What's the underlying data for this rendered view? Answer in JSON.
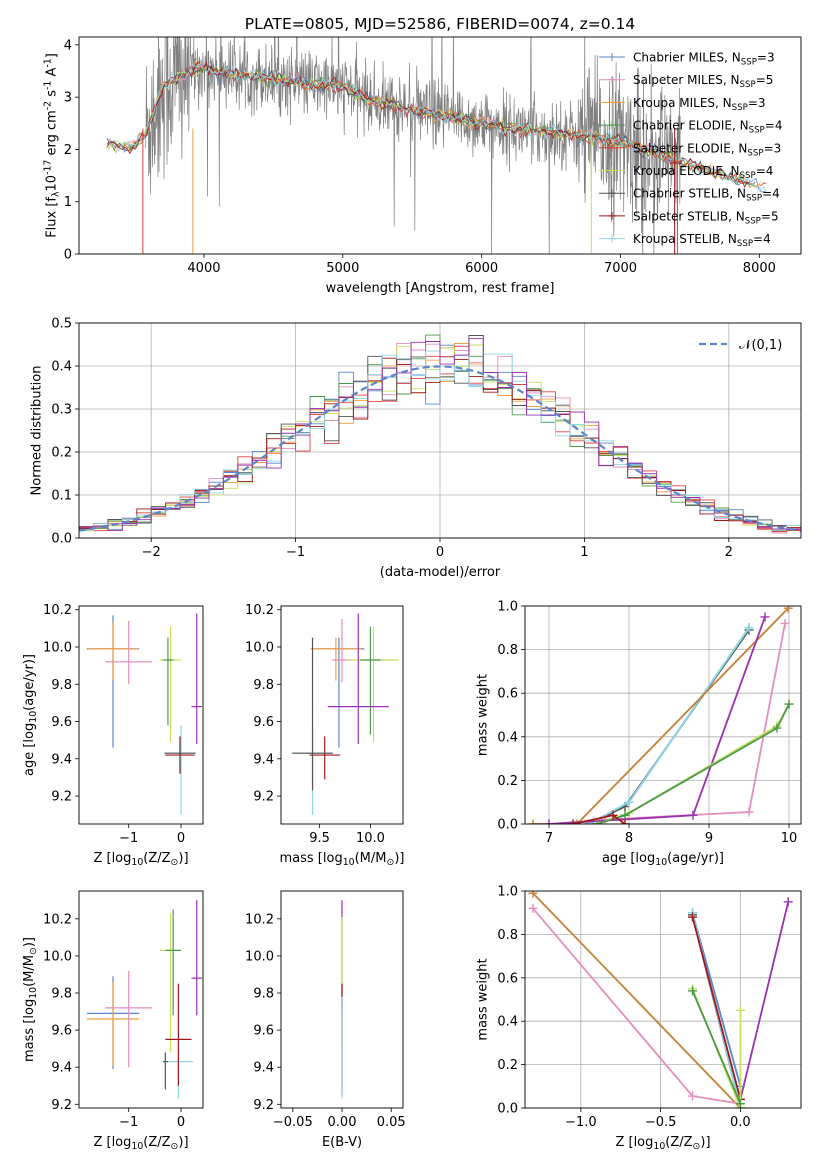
{
  "chart_data": [
    {
      "id": "spectrum",
      "type": "line",
      "title": "PLATE=0805, MJD=52586, FIBERID=0074, z=0.14",
      "xlabel": "wavelength [Angstrom, rest frame]",
      "ylabel": "Flux [f$_\\lambda$10$^{-17}$ erg cm$^{-2}$ s$^{-1}$ A$^{-1}$]",
      "xlim": [
        3100,
        8300
      ],
      "ylim": [
        0,
        4.15
      ],
      "xticks": [
        4000,
        5000,
        6000,
        7000,
        8000
      ],
      "yticks": [
        0,
        1,
        2,
        3,
        4
      ],
      "legend_position": "upper-right",
      "legend": [
        {
          "name": "Chabrier MILES, N$_{SSP}$=3",
          "color": "#5b86c9",
          "marker": "+"
        },
        {
          "name": "Salpeter MILES, N$_{SSP}$=5",
          "color": "#e38fbd",
          "marker": "+"
        },
        {
          "name": "Kroupa MILES, N$_{SSP}$=3",
          "color": "#f0a040",
          "marker": "+"
        },
        {
          "name": "Chabrier ELODIE, N$_{SSP}$=4",
          "color": "#4c9a4c",
          "marker": "+"
        },
        {
          "name": "Salpeter ELODIE, N$_{SSP}$=3",
          "color": "#e04040",
          "marker": "+"
        },
        {
          "name": "Kroupa ELODIE, N$_{SSP}$=4",
          "color": "#c8e060",
          "marker": "+"
        },
        {
          "name": "Chabrier STELIB, N$_{SSP}$=4",
          "color": "#555555",
          "marker": "+"
        },
        {
          "name": "Salpeter STELIB, N$_{SSP}$=5",
          "color": "#a01818",
          "marker": "+"
        },
        {
          "name": "Kroupa STELIB, N$_{SSP}$=4",
          "color": "#8fd8e8",
          "marker": "+"
        }
      ],
      "data_color": "#808080",
      "data_x_range": [
        3580,
        7430
      ],
      "model_curve": {
        "x": [
          3300,
          3500,
          3580,
          3700,
          3900,
          4000,
          4200,
          4500,
          4800,
          5000,
          5200,
          5500,
          5800,
          6200,
          6600,
          7000,
          7400,
          7800,
          8050
        ],
        "y": [
          2.1,
          2.05,
          2.3,
          3.2,
          3.5,
          3.55,
          3.45,
          3.35,
          3.25,
          3.2,
          2.95,
          2.75,
          2.6,
          2.4,
          2.3,
          2.15,
          1.8,
          1.45,
          1.25
        ]
      }
    },
    {
      "id": "residuals",
      "type": "histogram",
      "xlabel": "(data-model)/error",
      "ylabel": "Normed distribution",
      "xlim": [
        -2.5,
        2.5
      ],
      "ylim": [
        0,
        0.5
      ],
      "xticks": [
        -2,
        -1,
        0,
        1,
        2
      ],
      "yticks": [
        0.0,
        0.1,
        0.2,
        0.3,
        0.4,
        0.5
      ],
      "grid": true,
      "legend_position": "upper-right",
      "reference_curve": {
        "name": "$\\mathcal{N}(0,1)$",
        "style": "dashed",
        "color": "#5b86c9"
      },
      "bin_width": 0.1
    },
    {
      "id": "age-vs-z",
      "type": "errorbar",
      "xlabel": "Z [log$_{10}$(Z/Z$_\\odot$)]",
      "ylabel": "age  [log$_{10}$(age/yr)]",
      "xlim": [
        -1.95,
        0.42
      ],
      "ylim": [
        9.05,
        10.22
      ],
      "xticks": [
        -1,
        0
      ],
      "yticks": [
        9.2,
        9.4,
        9.6,
        9.8,
        10.0,
        10.2
      ],
      "points": [
        {
          "x": -1.3,
          "y": 9.99,
          "xerr": 0.5,
          "yerr": [
            0.53,
            0.18
          ],
          "color": "#5b86c9"
        },
        {
          "x": -1.3,
          "y": 9.99,
          "xerr": 0.48,
          "yerr": [
            0.17,
            0.14
          ],
          "color": "#f0a040"
        },
        {
          "x": -1.0,
          "y": 9.92,
          "xerr": 0.45,
          "yerr": [
            0.12,
            0.22
          ],
          "color": "#e38fbd"
        },
        {
          "x": -0.2,
          "y": 9.93,
          "xerr": 0.2,
          "yerr": [
            0.44,
            0.18
          ],
          "color": "#c8e060"
        },
        {
          "x": -0.25,
          "y": 9.93,
          "xerr": 0.1,
          "yerr": [
            0.35,
            0.12
          ],
          "color": "#4c9a4c"
        },
        {
          "x": 0.3,
          "y": 9.68,
          "xerr": 0.1,
          "yerr": [
            0.2,
            0.5
          ],
          "color": "#9b30b0"
        },
        {
          "x": 0.0,
          "y": 9.43,
          "xerr": 0.28,
          "yerr": [
            0.33,
            0.15
          ],
          "color": "#8fd8e8"
        },
        {
          "x": -0.02,
          "y": 9.42,
          "xerr": 0.28,
          "yerr": [
            0.1,
            0.1
          ],
          "color": "#a01818"
        },
        {
          "x": -0.02,
          "y": 9.43,
          "xerr": 0.3,
          "yerr": [
            0.08,
            0.05
          ],
          "color": "#555555"
        }
      ]
    },
    {
      "id": "age-vs-mass",
      "type": "errorbar",
      "xlabel": "mass [log$_{10}$(M/M$_\\odot$)]",
      "ylabel": "",
      "xlim": [
        9.12,
        10.32
      ],
      "ylim": [
        9.05,
        10.22
      ],
      "xticks": [
        9.5,
        10.0
      ],
      "yticks": [
        9.2,
        9.4,
        9.6,
        9.8,
        10.0,
        10.2
      ],
      "points": [
        {
          "x": 9.69,
          "y": 9.99,
          "xerr": 0.25,
          "yerr": [
            0.53,
            0.06
          ],
          "color": "#5b86c9"
        },
        {
          "x": 9.66,
          "y": 9.99,
          "xerr": 0.25,
          "yerr": [
            0.17,
            0.06
          ],
          "color": "#f0a040"
        },
        {
          "x": 9.72,
          "y": 9.93,
          "xerr": 0.1,
          "yerr": [
            0.12,
            0.22
          ],
          "color": "#e38fbd"
        },
        {
          "x": 10.03,
          "y": 9.93,
          "xerr": 0.25,
          "yerr": [
            0.44,
            0.18
          ],
          "color": "#c8e060"
        },
        {
          "x": 10.0,
          "y": 9.93,
          "xerr": 0.1,
          "yerr": [
            0.4,
            0.18
          ],
          "color": "#4c9a4c"
        },
        {
          "x": 9.88,
          "y": 9.68,
          "xerr": 0.3,
          "yerr": [
            0.2,
            0.5
          ],
          "color": "#9b30b0"
        },
        {
          "x": 9.43,
          "y": 9.43,
          "xerr": 0.2,
          "yerr": [
            0.33,
            0.15
          ],
          "color": "#8fd8e8"
        },
        {
          "x": 9.55,
          "y": 9.42,
          "xerr": 0.15,
          "yerr": [
            0.13,
            0.1
          ],
          "color": "#a01818"
        },
        {
          "x": 9.43,
          "y": 9.43,
          "xerr": 0.2,
          "yerr": [
            0.2,
            0.62
          ],
          "color": "#555555"
        }
      ]
    },
    {
      "id": "mass-weight-vs-age",
      "type": "line",
      "xlabel": "age  [log$_{10}$(age/yr)]",
      "ylabel": "mass weight",
      "xlim": [
        6.7,
        10.15
      ],
      "ylim": [
        0,
        1.0
      ],
      "xticks": [
        7,
        8,
        9,
        10
      ],
      "yticks": [
        0.0,
        0.2,
        0.4,
        0.6,
        0.8,
        1.0
      ],
      "grid": true,
      "series": [
        {
          "color": "#5b86c9",
          "x": [
            7.5,
            8.0,
            9.5
          ],
          "y": [
            0.0,
            0.1,
            0.9
          ]
        },
        {
          "color": "#555555",
          "x": [
            7.5,
            7.95,
            9.5
          ],
          "y": [
            0.0,
            0.08,
            0.89
          ]
        },
        {
          "color": "#8fd8e8",
          "x": [
            7.5,
            8.0,
            9.5
          ],
          "y": [
            0.0,
            0.1,
            0.9
          ]
        },
        {
          "color": "#e38fbd",
          "x": [
            7.0,
            7.7,
            9.5,
            9.95
          ],
          "y": [
            0.0,
            0.02,
            0.055,
            0.92
          ]
        },
        {
          "color": "#c48036",
          "x": [
            6.8,
            7.35,
            9.99
          ],
          "y": [
            0.0,
            0.0,
            0.99
          ]
        },
        {
          "color": "#9b30b0",
          "x": [
            7.0,
            8.8,
            9.7
          ],
          "y": [
            0.0,
            0.04,
            0.95
          ]
        },
        {
          "color": "#c8e060",
          "x": [
            7.6,
            8.0,
            9.85,
            10.0
          ],
          "y": [
            0.0,
            0.05,
            0.45,
            0.55
          ]
        },
        {
          "color": "#4c9a4c",
          "x": [
            7.6,
            7.95,
            9.85,
            10.0
          ],
          "y": [
            0.0,
            0.04,
            0.44,
            0.55
          ]
        },
        {
          "color": "#a01818",
          "x": [
            7.3,
            7.8,
            7.95
          ],
          "y": [
            0.0,
            0.04,
            0.0
          ]
        }
      ]
    },
    {
      "id": "mass-vs-z",
      "type": "errorbar",
      "xlabel": "Z [log$_{10}$(Z/Z$_\\odot$)]",
      "ylabel": "mass [log$_{10}$(M/M$_\\odot$)]",
      "xlim": [
        -1.95,
        0.42
      ],
      "ylim": [
        9.18,
        10.35
      ],
      "xticks": [
        -1,
        0
      ],
      "yticks": [
        9.2,
        9.4,
        9.6,
        9.8,
        10.0,
        10.2
      ],
      "points": [
        {
          "x": -1.3,
          "y": 9.69,
          "xerr": 0.5,
          "yerr": [
            0.3,
            0.2
          ],
          "color": "#5b86c9"
        },
        {
          "x": -1.3,
          "y": 9.66,
          "xerr": 0.5,
          "yerr": [
            0.25,
            0.2
          ],
          "color": "#f0a040"
        },
        {
          "x": -1.0,
          "y": 9.72,
          "xerr": 0.45,
          "yerr": [
            0.32,
            0.2
          ],
          "color": "#e38fbd"
        },
        {
          "x": -0.2,
          "y": 10.03,
          "xerr": 0.2,
          "yerr": [
            0.55,
            0.2
          ],
          "color": "#c8e060"
        },
        {
          "x": -0.15,
          "y": 10.03,
          "xerr": 0.15,
          "yerr": [
            0.35,
            0.22
          ],
          "color": "#4c9a4c"
        },
        {
          "x": 0.3,
          "y": 9.88,
          "xerr": 0.1,
          "yerr": [
            0.2,
            0.42
          ],
          "color": "#9b30b0"
        },
        {
          "x": -0.05,
          "y": 9.43,
          "xerr": 0.28,
          "yerr": [
            0.2,
            0.05
          ],
          "color": "#8fd8e8"
        },
        {
          "x": -0.05,
          "y": 9.55,
          "xerr": 0.25,
          "yerr": [
            0.25,
            0.3
          ],
          "color": "#a01818"
        },
        {
          "x": -0.3,
          "y": 9.43,
          "xerr": 0.05,
          "yerr": [
            0.15,
            0.05
          ],
          "color": "#555555"
        }
      ]
    },
    {
      "id": "mass-vs-ebv",
      "type": "errorbar",
      "xlabel": "E(B-V)",
      "ylabel": "",
      "xlim": [
        -0.062,
        0.062
      ],
      "ylim": [
        9.18,
        10.35
      ],
      "xticks": [
        -0.05,
        0.0,
        0.05
      ],
      "yticks": [
        9.2,
        9.4,
        9.6,
        9.8,
        10.0,
        10.2
      ],
      "points": [
        {
          "x": 0.0,
          "y": 9.88,
          "xerr": 0,
          "yerr": [
            0.2,
            0.42
          ],
          "color": "#9b30b0"
        },
        {
          "x": 0.0,
          "y": 10.03,
          "xerr": 0,
          "yerr": [
            0.55,
            0.18
          ],
          "color": "#c8e060"
        },
        {
          "x": 0.0,
          "y": 9.55,
          "xerr": 0,
          "yerr": [
            0.3,
            0.3
          ],
          "color": "#a01818"
        },
        {
          "x": 0.0,
          "y": 9.43,
          "xerr": 0,
          "yerr": [
            0.2,
            0.35
          ],
          "color": "#8fd8e8"
        }
      ]
    },
    {
      "id": "mass-weight-vs-z",
      "type": "line",
      "xlabel": "Z [log$_{10}$(Z/Z$_\\odot$)]",
      "ylabel": "mass weight",
      "xlim": [
        -1.35,
        0.38
      ],
      "ylim": [
        0,
        1.0
      ],
      "xticks": [
        -1.0,
        -0.5,
        0.0
      ],
      "yticks": [
        0.0,
        0.2,
        0.4,
        0.6,
        0.8,
        1.0
      ],
      "grid": true,
      "series": [
        {
          "color": "#c48036",
          "x": [
            -1.3,
            0.0
          ],
          "y": [
            0.99,
            0.0
          ]
        },
        {
          "color": "#e38fbd",
          "x": [
            -1.3,
            -0.3,
            0.0
          ],
          "y": [
            0.92,
            0.055,
            0.02
          ]
        },
        {
          "color": "#9b30b0",
          "x": [
            0.0,
            0.3
          ],
          "y": [
            0.04,
            0.95
          ]
        },
        {
          "color": "#555555",
          "x": [
            -0.3,
            0.0
          ],
          "y": [
            0.89,
            0.0
          ]
        },
        {
          "color": "#5b86c9",
          "x": [
            -0.3,
            0.0
          ],
          "y": [
            0.9,
            0.1
          ]
        },
        {
          "color": "#8fd8e8",
          "x": [
            -0.3,
            0.0
          ],
          "y": [
            0.9,
            0.0
          ]
        },
        {
          "color": "#a01818",
          "x": [
            -0.3,
            0.0
          ],
          "y": [
            0.88,
            0.04
          ]
        },
        {
          "color": "#c8e060",
          "x": [
            -0.3,
            0.0,
            0.0
          ],
          "y": [
            0.55,
            0.0,
            0.45
          ]
        },
        {
          "color": "#4c9a4c",
          "x": [
            -0.3,
            0.0
          ],
          "y": [
            0.54,
            0.02
          ]
        }
      ]
    }
  ]
}
